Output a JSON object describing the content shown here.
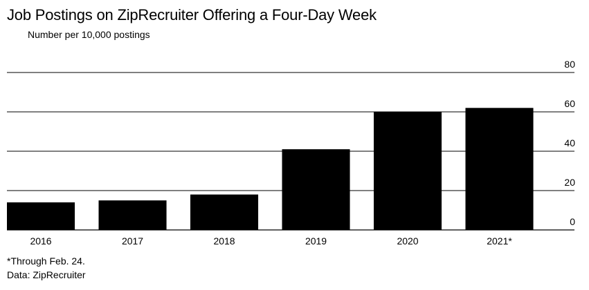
{
  "chart_data": {
    "type": "bar",
    "title": "Job Postings on ZipRecruiter Offering a Four-Day Week",
    "subtitle": "Number per 10,000 postings",
    "categories": [
      "2016",
      "2017",
      "2018",
      "2019",
      "2020",
      "2021*"
    ],
    "values": [
      14,
      15,
      18,
      41,
      60,
      62
    ],
    "ylim": [
      0,
      80
    ],
    "yticks": [
      0,
      20,
      40,
      60,
      80
    ],
    "grid": true,
    "y_axis_side": "right",
    "bar_color": "#000000",
    "grid_color": "#000000",
    "footnote": "*Through Feb. 24.",
    "source": "Data: ZipRecruiter"
  }
}
